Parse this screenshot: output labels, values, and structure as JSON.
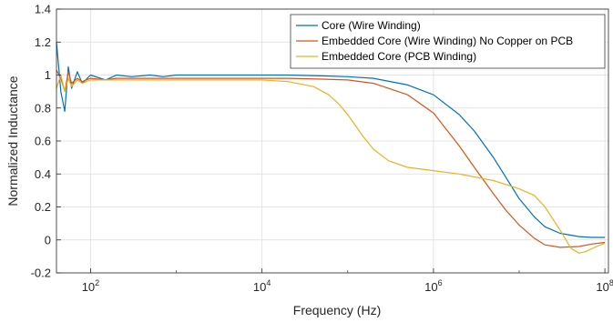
{
  "chart_data": {
    "type": "line",
    "xlabel": "Frequency (Hz)",
    "ylabel": "Normalized Inductance",
    "xscale": "log",
    "xlim": [
      40,
      110000000
    ],
    "ylim": [
      -0.2,
      1.4
    ],
    "yticks": [
      "-0.2",
      "0",
      "0.2",
      "0.4",
      "0.6",
      "0.8",
      "1",
      "1.2",
      "1.4"
    ],
    "xticks": [
      {
        "base": "10",
        "exp": "2"
      },
      {
        "base": "10",
        "exp": "4"
      },
      {
        "base": "10",
        "exp": "6"
      },
      {
        "base": "10",
        "exp": "8"
      }
    ],
    "grid": true,
    "legend_position": "top-right",
    "series": [
      {
        "name": "Core (Wire Winding)",
        "color": "#0072BD",
        "x": [
          40,
          45,
          50,
          55,
          60,
          70,
          80,
          100,
          150,
          200,
          300,
          500,
          700,
          1000,
          2000,
          5000,
          10000,
          20000,
          50000,
          100000,
          200000,
          500000,
          1000000,
          2000000,
          3000000,
          5000000,
          7000000,
          10000000,
          15000000,
          20000000,
          30000000,
          50000000,
          70000000,
          100000000
        ],
        "y": [
          1.2,
          0.9,
          0.78,
          1.05,
          0.92,
          1.02,
          0.95,
          1.0,
          0.97,
          1.0,
          0.99,
          1.0,
          0.99,
          1.0,
          1.0,
          1.0,
          1.0,
          1.0,
          0.995,
          0.99,
          0.98,
          0.94,
          0.88,
          0.76,
          0.66,
          0.5,
          0.38,
          0.25,
          0.14,
          0.08,
          0.04,
          0.02,
          0.015,
          0.015
        ]
      },
      {
        "name": "Embedded Core (Wire Winding) No Copper on PCB",
        "color": "#D95319",
        "x": [
          40,
          45,
          50,
          55,
          60,
          70,
          80,
          100,
          150,
          200,
          300,
          500,
          700,
          1000,
          2000,
          5000,
          10000,
          20000,
          50000,
          100000,
          200000,
          500000,
          1000000,
          2000000,
          3000000,
          5000000,
          7000000,
          10000000,
          15000000,
          20000000,
          30000000,
          50000000,
          70000000,
          100000000
        ],
        "y": [
          1.03,
          0.98,
          0.9,
          1.02,
          0.95,
          0.98,
          0.96,
          0.98,
          0.97,
          0.98,
          0.98,
          0.98,
          0.98,
          0.98,
          0.98,
          0.98,
          0.98,
          0.98,
          0.975,
          0.97,
          0.95,
          0.88,
          0.77,
          0.57,
          0.44,
          0.28,
          0.18,
          0.09,
          0.01,
          -0.03,
          -0.045,
          -0.04,
          -0.025,
          -0.015
        ]
      },
      {
        "name": "Embedded Core (PCB Winding)",
        "color": "#EDB120",
        "x": [
          40,
          45,
          50,
          55,
          60,
          70,
          80,
          100,
          150,
          200,
          300,
          500,
          700,
          1000,
          2000,
          5000,
          10000,
          20000,
          40000,
          60000,
          80000,
          100000,
          150000,
          200000,
          300000,
          500000,
          1000000,
          2000000,
          5000000,
          10000000,
          15000000,
          20000000,
          30000000,
          40000000,
          50000000,
          60000000,
          80000000,
          100000000
        ],
        "y": [
          0.92,
          1.0,
          0.9,
          0.98,
          0.93,
          0.97,
          0.95,
          0.97,
          0.97,
          0.97,
          0.97,
          0.97,
          0.97,
          0.97,
          0.97,
          0.97,
          0.97,
          0.96,
          0.93,
          0.88,
          0.82,
          0.76,
          0.63,
          0.55,
          0.48,
          0.44,
          0.42,
          0.4,
          0.36,
          0.31,
          0.27,
          0.2,
          0.06,
          -0.05,
          -0.08,
          -0.07,
          -0.04,
          -0.02
        ]
      }
    ]
  }
}
